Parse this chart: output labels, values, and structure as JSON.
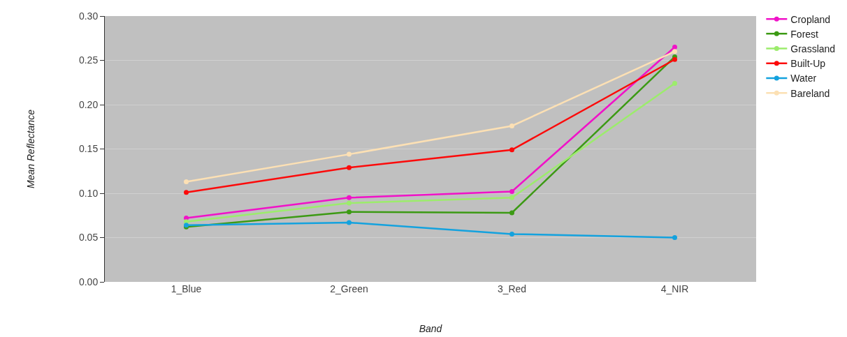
{
  "chart_data": {
    "type": "line",
    "xlabel": "Band",
    "ylabel": "Mean Reflectance",
    "categories": [
      "1_Blue",
      "2_Green",
      "3_Red",
      "4_NIR"
    ],
    "series": [
      {
        "name": "Cropland",
        "color": "#f012c8",
        "values": [
          0.072,
          0.095,
          0.102,
          0.265
        ]
      },
      {
        "name": "Forest",
        "color": "#3c9a14",
        "values": [
          0.062,
          0.079,
          0.078,
          0.254
        ]
      },
      {
        "name": "Grassland",
        "color": "#9cec6c",
        "values": [
          0.068,
          0.089,
          0.095,
          0.224
        ]
      },
      {
        "name": "Built-Up",
        "color": "#fc0a0a",
        "values": [
          0.101,
          0.129,
          0.149,
          0.251
        ]
      },
      {
        "name": "Water",
        "color": "#14a2de",
        "values": [
          0.064,
          0.067,
          0.054,
          0.05
        ]
      },
      {
        "name": "Bareland",
        "color": "#fce0b4",
        "values": [
          0.113,
          0.144,
          0.176,
          0.26
        ]
      }
    ],
    "ylim": [
      0,
      0.3
    ],
    "yticks": [
      {
        "value": 0,
        "label": "0.00"
      },
      {
        "value": 0.05,
        "label": "0.05"
      },
      {
        "value": 0.1,
        "label": "0.10"
      },
      {
        "value": 0.15,
        "label": "0.15"
      },
      {
        "value": 0.2,
        "label": "0.20"
      },
      {
        "value": 0.25,
        "label": "0.25"
      },
      {
        "value": 0.3,
        "label": "0.30"
      }
    ],
    "grid": "y",
    "legend": "top right",
    "marker": "circle",
    "line_style": "solid"
  }
}
